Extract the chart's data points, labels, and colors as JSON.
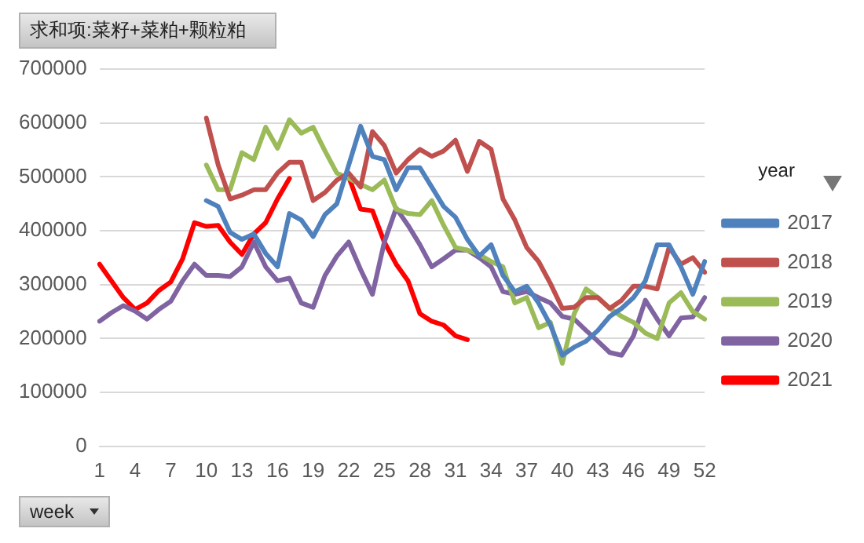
{
  "chart_data": {
    "type": "line",
    "title": "求和项:菜籽+菜粕+颗粒粕",
    "xlabel": "week",
    "legend_title": "year",
    "legend": "right",
    "grid": "y",
    "marker": "none",
    "line_style": "solid",
    "categories": [
      "1",
      null,
      null,
      "4",
      null,
      null,
      "7",
      null,
      null,
      "10",
      null,
      null,
      "13",
      null,
      null,
      "16",
      null,
      null,
      "19",
      null,
      null,
      "22",
      null,
      null,
      "25",
      null,
      null,
      "28",
      null,
      null,
      "31",
      null,
      null,
      "34",
      null,
      null,
      "37",
      null,
      null,
      "40",
      null,
      null,
      "43",
      null,
      null,
      "46",
      null,
      null,
      "49",
      null,
      null,
      "52"
    ],
    "ylim": [
      0,
      700000
    ],
    "yticks": [
      0,
      100000,
      200000,
      300000,
      400000,
      500000,
      600000,
      700000
    ],
    "series": [
      {
        "name": "2017",
        "color": "#4f81bd",
        "values": [
          null,
          null,
          null,
          null,
          null,
          null,
          null,
          null,
          null,
          456000,
          445000,
          397000,
          384000,
          394000,
          358000,
          333000,
          432000,
          420000,
          389000,
          430000,
          450000,
          522000,
          594000,
          538000,
          532000,
          476000,
          517000,
          517000,
          481000,
          445000,
          425000,
          384000,
          353000,
          374000,
          317000,
          287000,
          297000,
          266000,
          225000,
          169000,
          184000,
          195000,
          215000,
          241000,
          256000,
          276000,
          307000,
          374000,
          374000,
          333000,
          282000,
          343000
        ]
      },
      {
        "name": "2018",
        "color": "#c0504d",
        "values": [
          null,
          null,
          null,
          null,
          null,
          null,
          null,
          null,
          null,
          609000,
          522000,
          459000,
          466000,
          476000,
          476000,
          507000,
          527000,
          527000,
          456000,
          471000,
          494000,
          507000,
          481000,
          584000,
          558000,
          507000,
          532000,
          551000,
          538000,
          548000,
          568000,
          510000,
          566000,
          551000,
          459000,
          420000,
          369000,
          343000,
          302000,
          256000,
          258000,
          276000,
          276000,
          256000,
          271000,
          297000,
          297000,
          292000,
          369000,
          338000,
          350000,
          323000
        ]
      },
      {
        "name": "2019",
        "color": "#9bbb59",
        "values": [
          null,
          null,
          null,
          null,
          null,
          null,
          null,
          null,
          null,
          522000,
          476000,
          476000,
          545000,
          532000,
          592000,
          553000,
          606000,
          581000,
          592000,
          548000,
          507000,
          497000,
          486000,
          476000,
          494000,
          440000,
          432000,
          430000,
          456000,
          410000,
          369000,
          364000,
          356000,
          343000,
          333000,
          266000,
          276000,
          220000,
          230000,
          154000,
          246000,
          292000,
          276000,
          256000,
          241000,
          230000,
          210000,
          200000,
          266000,
          285000,
          250000,
          236000
        ]
      },
      {
        "name": "2020",
        "color": "#8064a2",
        "values": [
          232000,
          248000,
          261000,
          251000,
          236000,
          254000,
          269000,
          307000,
          338000,
          317000,
          317000,
          315000,
          333000,
          379000,
          333000,
          307000,
          312000,
          266000,
          258000,
          317000,
          353000,
          379000,
          328000,
          282000,
          379000,
          442000,
          410000,
          374000,
          333000,
          348000,
          364000,
          364000,
          350000,
          333000,
          287000,
          282000,
          287000,
          276000,
          266000,
          241000,
          236000,
          215000,
          195000,
          174000,
          169000,
          205000,
          271000,
          236000,
          205000,
          238000,
          240000,
          276000
        ]
      },
      {
        "name": "2021",
        "color": "#ff0000",
        "values": [
          338000,
          307000,
          276000,
          254000,
          266000,
          289000,
          305000,
          348000,
          415000,
          408000,
          410000,
          379000,
          356000,
          394000,
          415000,
          459000,
          497000,
          null,
          null,
          null,
          null,
          500000,
          440000,
          437000,
          379000,
          338000,
          307000,
          246000,
          232000,
          225000,
          205000,
          198000,
          null,
          null,
          null,
          null,
          null,
          null,
          null,
          null,
          null,
          null,
          null,
          null,
          null,
          null,
          null,
          null,
          null,
          null,
          null,
          null
        ]
      }
    ]
  }
}
